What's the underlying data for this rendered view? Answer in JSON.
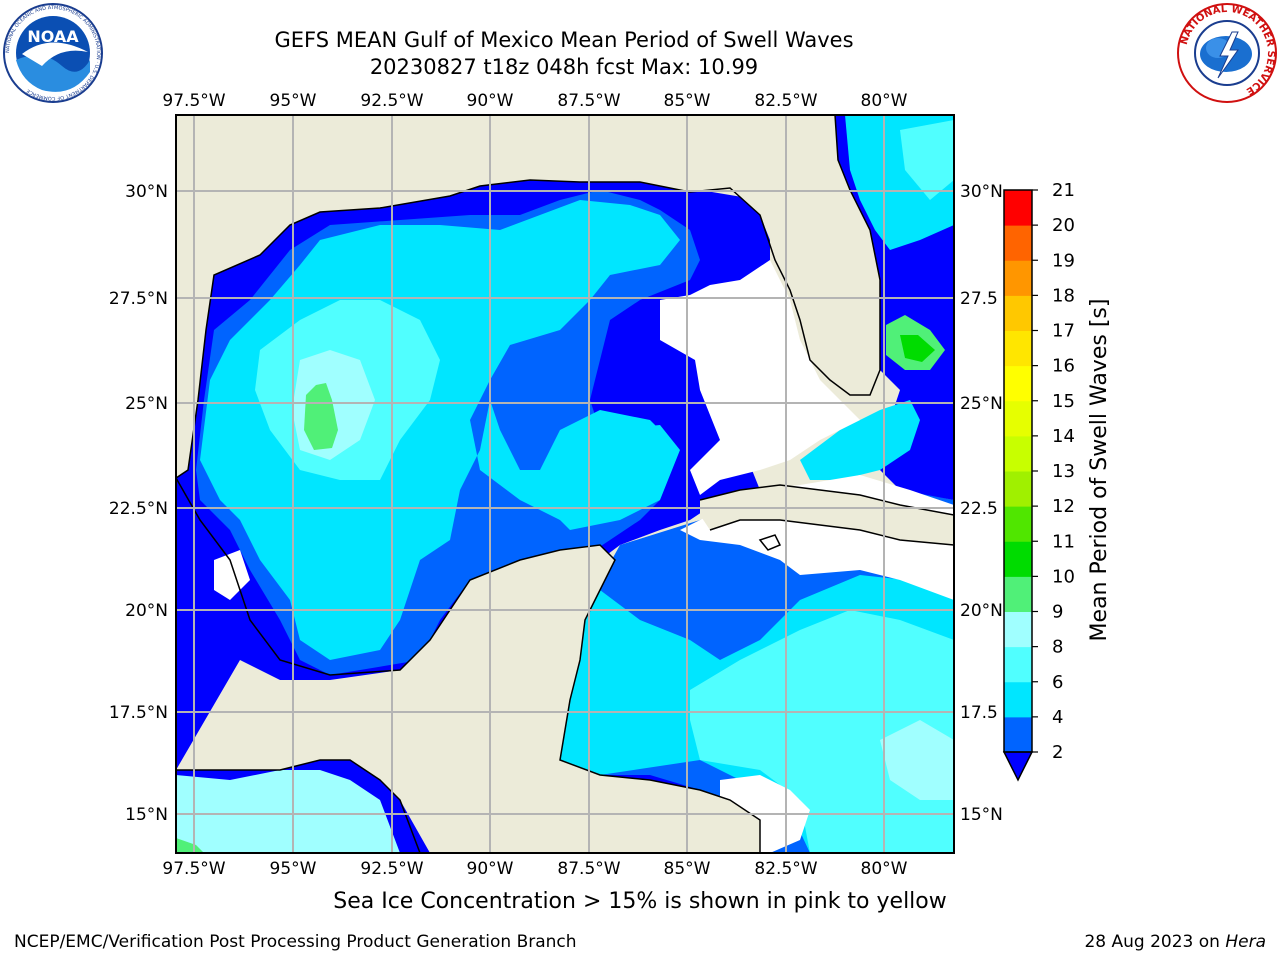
{
  "header": {
    "title_line1": "GEFS MEAN Gulf of Mexico Mean Period of Swell Waves",
    "title_line2": "20230827 t18z 048h fcst   Max: 10.99"
  },
  "logos": {
    "left": "NOAA",
    "left_ring": "NATIONAL OCEANIC AND ATMOSPHERIC ADMINISTRATION · U.S. DEPARTMENT OF COMMERCE",
    "right_ring": "NATIONAL WEATHER SERVICE"
  },
  "map": {
    "lon_labels": [
      "97.5°W",
      "95°W",
      "92.5°W",
      "90°W",
      "87.5°W",
      "85°W",
      "82.5°W",
      "80°W"
    ],
    "lat_labels_left": [
      "30°N",
      "27.5°N",
      "25°N",
      "22.5°N",
      "20°N",
      "17.5°N",
      "15°N"
    ],
    "lat_labels_right": [
      "30°N",
      "27.5",
      "25°N",
      "22.5",
      "20°N",
      "17.5",
      "15°N"
    ],
    "colors": {
      "land": "#ecebd9",
      "ocean_low": "#0000ff",
      "grid": "#b4b4b4"
    }
  },
  "colorbar": {
    "label": "Mean Period of Swell Waves [s]",
    "ticks": [
      "2",
      "4",
      "6",
      "8",
      "9",
      "10",
      "11",
      "12",
      "13",
      "14",
      "15",
      "16",
      "17",
      "18",
      "19",
      "20",
      "21"
    ],
    "colors": [
      "#0064ff",
      "#00e6ff",
      "#50ffff",
      "#a0ffff",
      "#50f078",
      "#00dc00",
      "#50e600",
      "#a0f000",
      "#c8ff00",
      "#e6ff00",
      "#ffff00",
      "#ffe600",
      "#ffc800",
      "#ff9600",
      "#ff6400",
      "#ff3200",
      "#ff0000"
    ],
    "extend_color": "#0000ff"
  },
  "note": "Sea Ice Concentration > 15% is shown in pink to yellow",
  "footer": {
    "left": "NCEP/EMC/Verification Post Processing Product Generation Branch",
    "date": "28 Aug 2023 on ",
    "machine": "Hera"
  }
}
